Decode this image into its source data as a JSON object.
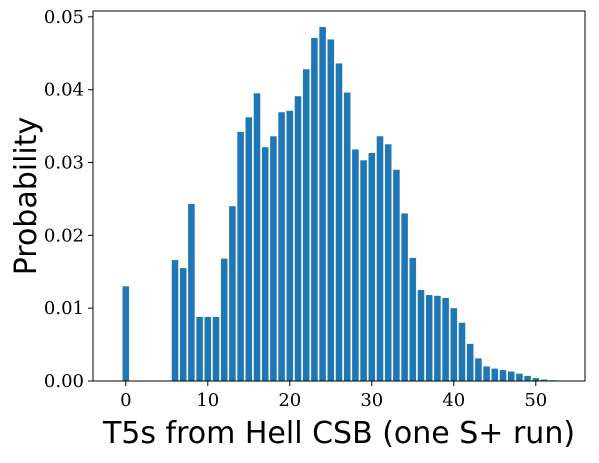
{
  "chart_data": {
    "type": "bar",
    "xlabel": "T5s from Hell CSB (one S+ run)",
    "ylabel": "Probability",
    "xlim": [
      -4,
      56
    ],
    "ylim": [
      0,
      0.0508
    ],
    "xticks": [
      0,
      10,
      20,
      30,
      40,
      50
    ],
    "yticks": [
      0.0,
      0.01,
      0.02,
      0.03,
      0.04,
      0.05
    ],
    "ytick_labels": [
      "0.00",
      "0.01",
      "0.02",
      "0.03",
      "0.04",
      "0.05"
    ],
    "grid": false,
    "bar_color": "#1f77b4",
    "x": [
      0,
      1,
      2,
      3,
      4,
      5,
      6,
      7,
      8,
      9,
      10,
      11,
      12,
      13,
      14,
      15,
      16,
      17,
      18,
      19,
      20,
      21,
      22,
      23,
      24,
      25,
      26,
      27,
      28,
      29,
      30,
      31,
      32,
      33,
      34,
      35,
      36,
      37,
      38,
      39,
      40,
      41,
      42,
      43,
      44,
      45,
      46,
      47,
      48,
      49,
      50,
      51,
      52,
      53
    ],
    "values": [
      0.013,
      0,
      0,
      0,
      0,
      0,
      0.0166,
      0.0155,
      0.0243,
      0.0088,
      0.0088,
      0.0088,
      0.0168,
      0.024,
      0.0342,
      0.0362,
      0.0395,
      0.0321,
      0.0336,
      0.0369,
      0.0371,
      0.0391,
      0.0428,
      0.0471,
      0.0486,
      0.0469,
      0.0436,
      0.0396,
      0.0318,
      0.0303,
      0.0313,
      0.0336,
      0.0325,
      0.029,
      0.023,
      0.0169,
      0.0125,
      0.0118,
      0.0117,
      0.0114,
      0.01,
      0.008,
      0.0051,
      0.0031,
      0.002,
      0.0017,
      0.0015,
      0.0013,
      0.001,
      0.0007,
      0.0004,
      0.0002,
      0.0001,
      5e-05
    ]
  }
}
